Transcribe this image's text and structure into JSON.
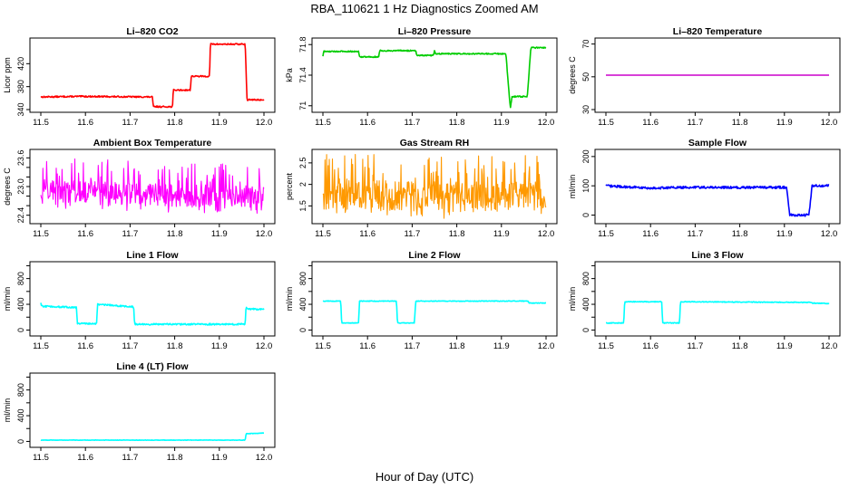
{
  "figure": {
    "title": "RBA_110621  1 Hz Diagnostics Zoomed AM",
    "xlabel": "Hour of Day (UTC)"
  },
  "chart_data": [
    {
      "type": "line",
      "title": "Li–820 CO2",
      "xlabel": "",
      "ylabel": "Licor ppm",
      "xlim": [
        11.5,
        12.0
      ],
      "ylim": [
        340,
        460
      ],
      "yticks": [
        340,
        380,
        420
      ],
      "xticks": [
        "11.5",
        "11.6",
        "11.7",
        "11.8",
        "11.9",
        "12.0"
      ],
      "color": "#ff0000",
      "noise": 1.2,
      "series": [
        {
          "values": [
            [
              11.5,
              362
            ],
            [
              11.59,
              363
            ],
            [
              11.75,
              362
            ],
            [
              11.752,
              345
            ],
            [
              11.795,
              345
            ],
            [
              11.797,
              374
            ],
            [
              11.835,
              374
            ],
            [
              11.837,
              398
            ],
            [
              11.878,
              398
            ],
            [
              11.88,
              454
            ],
            [
              11.958,
              454
            ],
            [
              11.962,
              357
            ],
            [
              12.0,
              357
            ]
          ]
        }
      ]
    },
    {
      "type": "line",
      "title": "Li–820 Pressure",
      "xlabel": "",
      "ylabel": "kPa",
      "xlim": [
        11.5,
        12.0
      ],
      "ylim": [
        70.95,
        71.85
      ],
      "yticks": [
        71.0,
        71.4,
        71.8
      ],
      "xticks": [
        "11.5",
        "11.6",
        "11.7",
        "11.8",
        "11.9",
        "12.0"
      ],
      "color": "#00cc00",
      "noise": 0.008,
      "series": [
        {
          "values": [
            [
              11.5,
              71.65
            ],
            [
              11.502,
              71.71
            ],
            [
              11.58,
              71.71
            ],
            [
              11.582,
              71.64
            ],
            [
              11.625,
              71.64
            ],
            [
              11.627,
              71.72
            ],
            [
              11.708,
              71.72
            ],
            [
              11.71,
              71.66
            ],
            [
              11.748,
              71.66
            ],
            [
              11.75,
              71.72
            ],
            [
              11.752,
              71.68
            ],
            [
              11.91,
              71.68
            ],
            [
              11.92,
              70.96
            ],
            [
              11.924,
              71.12
            ],
            [
              11.958,
              71.12
            ],
            [
              11.966,
              71.76
            ],
            [
              12.0,
              71.76
            ]
          ]
        }
      ]
    },
    {
      "type": "line",
      "title": "Li–820 Temperature",
      "xlabel": "",
      "ylabel": "degrees C",
      "xlim": [
        11.5,
        12.0
      ],
      "ylim": [
        30,
        72
      ],
      "yticks": [
        30,
        50,
        70
      ],
      "xticks": [
        "11.5",
        "11.6",
        "11.7",
        "11.8",
        "11.9",
        "12.0"
      ],
      "color": "#cc00cc",
      "noise": 0,
      "series": [
        {
          "values": [
            [
              11.5,
              51
            ],
            [
              12.0,
              51
            ]
          ]
        }
      ]
    },
    {
      "type": "line",
      "title": "Ambient Box Temperature",
      "xlabel": "",
      "ylabel": "degrees C",
      "xlim": [
        11.5,
        12.0
      ],
      "ylim": [
        22.28,
        23.72
      ],
      "yticks": [
        22.4,
        22.6,
        22.8,
        23.0,
        23.2,
        23.4,
        23.6
      ],
      "ytick_labels": [
        "22.4",
        "",
        "",
        "23.0",
        "",
        "",
        "23.6"
      ],
      "xticks": [
        "11.5",
        "11.6",
        "11.7",
        "11.8",
        "11.9",
        "12.0"
      ],
      "color": "#ff00ff",
      "noise": 0.25,
      "spiky": true,
      "series": [
        {
          "values": [
            [
              11.5,
              22.85
            ],
            [
              11.6,
              22.92
            ],
            [
              11.7,
              22.85
            ],
            [
              11.8,
              22.82
            ],
            [
              11.9,
              22.8
            ],
            [
              12.0,
              22.75
            ]
          ]
        }
      ]
    },
    {
      "type": "line",
      "title": "Gas Stream RH",
      "xlabel": "",
      "ylabel": "percent",
      "xlim": [
        11.5,
        12.0
      ],
      "ylim": [
        1.15,
        2.75
      ],
      "yticks": [
        1.5,
        2.0,
        2.5
      ],
      "xticks": [
        "11.5",
        "11.6",
        "11.7",
        "11.8",
        "11.9",
        "12.0"
      ],
      "color": "#ff9900",
      "noise": 0.35,
      "spiky": true,
      "series": [
        {
          "values": [
            [
              11.5,
              1.75
            ],
            [
              11.6,
              1.75
            ],
            [
              11.7,
              1.72
            ],
            [
              11.8,
              1.7
            ],
            [
              11.9,
              1.72
            ],
            [
              12.0,
              1.72
            ]
          ]
        }
      ]
    },
    {
      "type": "line",
      "title": "Sample Flow",
      "xlabel": "",
      "ylabel": "ml/min",
      "xlim": [
        11.5,
        12.0
      ],
      "ylim": [
        -20,
        215
      ],
      "yticks": [
        0,
        100,
        200
      ],
      "xticks": [
        "11.5",
        "11.6",
        "11.7",
        "11.8",
        "11.9",
        "12.0"
      ],
      "color": "#0000ff",
      "noise": 4,
      "series": [
        {
          "values": [
            [
              11.5,
              100
            ],
            [
              11.6,
              92
            ],
            [
              11.7,
              95
            ],
            [
              11.8,
              94
            ],
            [
              11.905,
              95
            ],
            [
              11.912,
              0
            ],
            [
              11.955,
              0
            ],
            [
              11.962,
              100
            ],
            [
              12.0,
              100
            ]
          ]
        }
      ]
    },
    {
      "type": "line",
      "title": "Line 1 Flow",
      "xlabel": "",
      "ylabel": "ml/min",
      "xlim": [
        11.5,
        12.0
      ],
      "ylim": [
        -50,
        1020
      ],
      "yticks": [
        0,
        200,
        400,
        600,
        800,
        1000
      ],
      "ytick_labels": [
        "0",
        "",
        "400",
        "",
        "800",
        ""
      ],
      "xticks": [
        "11.5",
        "11.6",
        "11.7",
        "11.8",
        "11.9",
        "12.0"
      ],
      "color": "#00ffff",
      "noise": 12,
      "series": [
        {
          "values": [
            [
              11.5,
              420
            ],
            [
              11.502,
              370
            ],
            [
              11.58,
              350
            ],
            [
              11.582,
              100
            ],
            [
              11.625,
              100
            ],
            [
              11.627,
              400
            ],
            [
              11.708,
              360
            ],
            [
              11.71,
              90
            ],
            [
              11.958,
              90
            ],
            [
              11.96,
              380
            ],
            [
              11.962,
              330
            ],
            [
              12.0,
              320
            ]
          ]
        }
      ]
    },
    {
      "type": "line",
      "title": "Line 2 Flow",
      "xlabel": "",
      "ylabel": "ml/min",
      "xlim": [
        11.5,
        12.0
      ],
      "ylim": [
        -50,
        1020
      ],
      "yticks": [
        0,
        200,
        400,
        600,
        800,
        1000
      ],
      "ytick_labels": [
        "0",
        "",
        "400",
        "",
        "800",
        ""
      ],
      "xticks": [
        "11.5",
        "11.6",
        "11.7",
        "11.8",
        "11.9",
        "12.0"
      ],
      "color": "#00ffff",
      "noise": 5,
      "series": [
        {
          "values": [
            [
              11.5,
              450
            ],
            [
              11.54,
              450
            ],
            [
              11.542,
              110
            ],
            [
              11.58,
              110
            ],
            [
              11.582,
              450
            ],
            [
              11.665,
              450
            ],
            [
              11.667,
              110
            ],
            [
              11.705,
              110
            ],
            [
              11.708,
              450
            ],
            [
              11.96,
              450
            ],
            [
              11.962,
              420
            ],
            [
              12.0,
              420
            ]
          ]
        }
      ]
    },
    {
      "type": "line",
      "title": "Line 3 Flow",
      "xlabel": "",
      "ylabel": "ml/min",
      "xlim": [
        11.5,
        12.0
      ],
      "ylim": [
        -50,
        1020
      ],
      "yticks": [
        0,
        200,
        400,
        600,
        800,
        1000
      ],
      "ytick_labels": [
        "0",
        "",
        "400",
        "",
        "800",
        ""
      ],
      "xticks": [
        "11.5",
        "11.6",
        "11.7",
        "11.8",
        "11.9",
        "12.0"
      ],
      "color": "#00ffff",
      "noise": 6,
      "series": [
        {
          "values": [
            [
              11.5,
              110
            ],
            [
              11.54,
              110
            ],
            [
              11.542,
              440
            ],
            [
              11.625,
              440
            ],
            [
              11.627,
              110
            ],
            [
              11.665,
              110
            ],
            [
              11.667,
              440
            ],
            [
              11.96,
              430
            ],
            [
              11.962,
              420
            ],
            [
              12.0,
              410
            ]
          ]
        }
      ]
    },
    {
      "type": "line",
      "title": "Line 4 (LT) Flow",
      "xlabel": "",
      "ylabel": "ml/min",
      "xlim": [
        11.5,
        12.0
      ],
      "ylim": [
        -50,
        1020
      ],
      "yticks": [
        0,
        200,
        400,
        600,
        800,
        1000
      ],
      "ytick_labels": [
        "0",
        "",
        "400",
        "",
        "800",
        ""
      ],
      "xticks": [
        "11.5",
        "11.6",
        "11.7",
        "11.8",
        "11.9",
        "12.0"
      ],
      "color": "#00ffff",
      "noise": 3,
      "series": [
        {
          "values": [
            [
              11.5,
              20
            ],
            [
              11.958,
              20
            ],
            [
              11.96,
              120
            ],
            [
              12.0,
              130
            ]
          ]
        }
      ]
    }
  ]
}
